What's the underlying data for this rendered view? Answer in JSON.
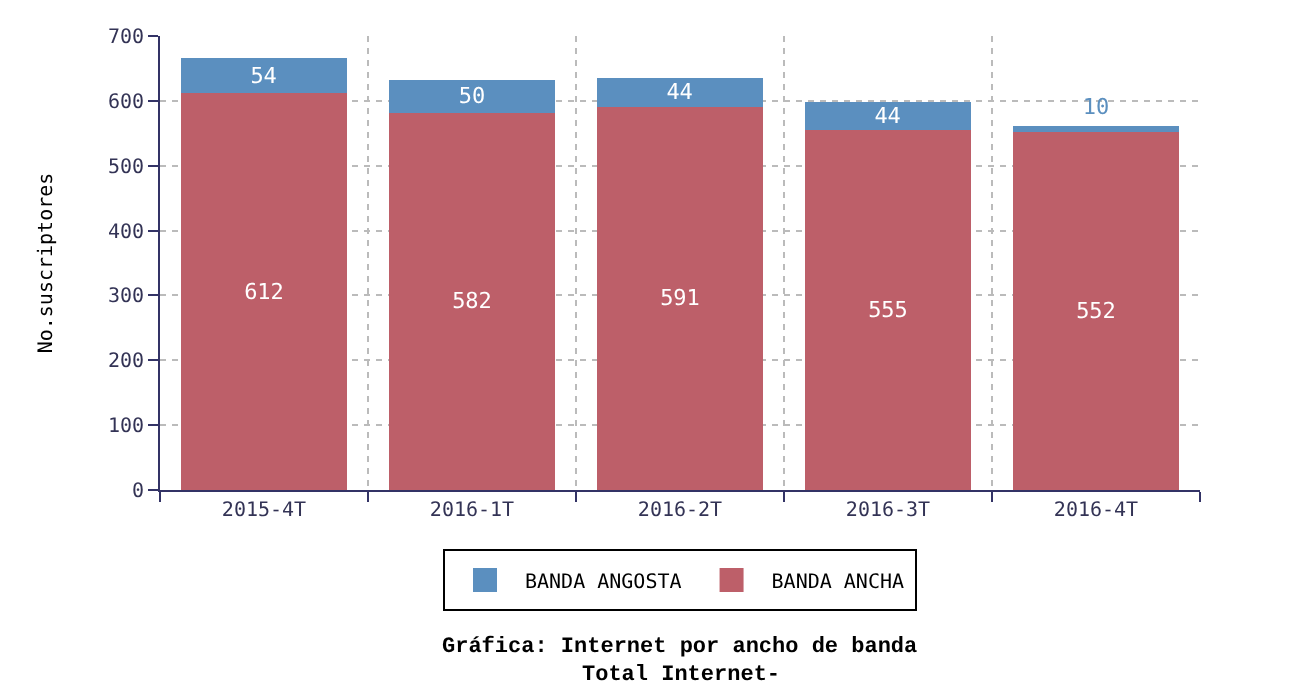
{
  "chart_data": {
    "type": "bar",
    "stacked": true,
    "title": "Gráfica: Internet por ancho de banda",
    "subtitle": "Total Internet-",
    "ylabel": "No.suscriptores",
    "categories": [
      "2015-4T",
      "2016-1T",
      "2016-2T",
      "2016-3T",
      "2016-4T"
    ],
    "series": [
      {
        "name": "BANDA ANCHA",
        "color": "#bd5f69",
        "values": [
          612,
          582,
          591,
          555,
          552
        ]
      },
      {
        "name": "BANDA ANGOSTA",
        "color": "#5b8fbf",
        "values": [
          54,
          50,
          44,
          44,
          10
        ]
      }
    ],
    "ylim": [
      0,
      700
    ],
    "yticks": [
      0,
      100,
      200,
      300,
      400,
      500,
      600,
      700
    ],
    "grid": true,
    "legend": "bottom",
    "data_labels": true
  }
}
